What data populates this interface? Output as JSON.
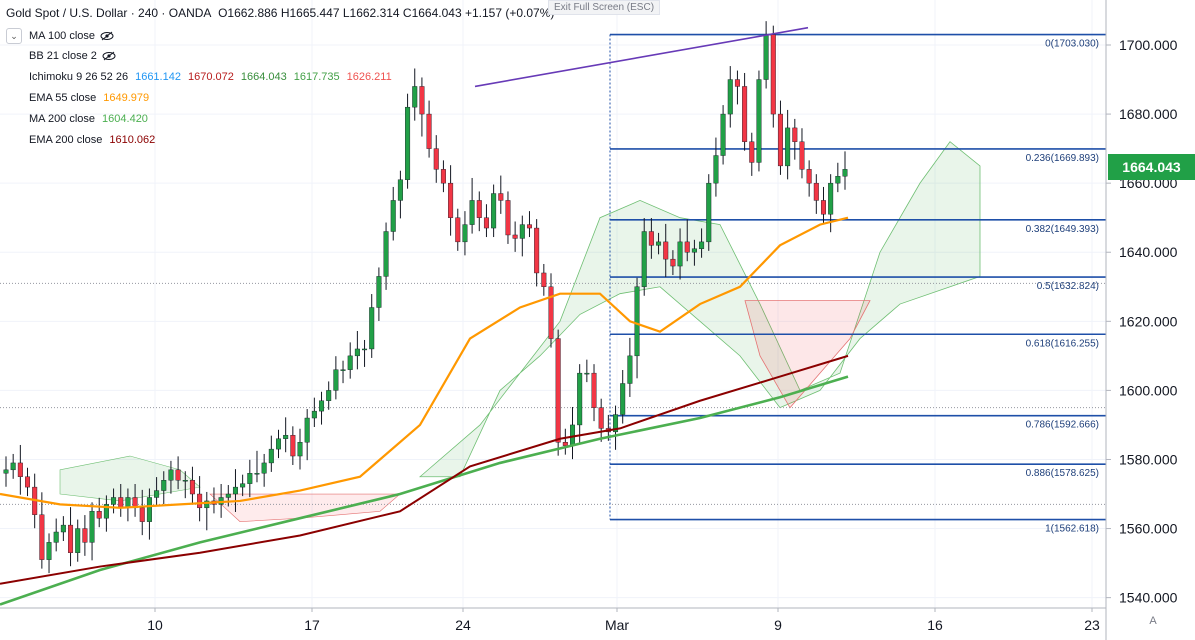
{
  "header": {
    "symbol": "Gold Spot / U.S. Dollar · 240 · OANDA",
    "ohlc": "O1662.886 H1665.447 L1662.314 C1664.043 +1.157 (+0.07%)"
  },
  "exit_fullscreen": "Exit Full Screen (ESC)",
  "indicators": [
    {
      "label": "MA 100 close",
      "values": []
    },
    {
      "label": "BB 21 close 2",
      "values": []
    },
    {
      "label": "Ichimoku 9 26 52 26",
      "values": [
        {
          "v": "1661.142",
          "color": "#2196f3"
        },
        {
          "v": "1670.072",
          "color": "#b71c1c"
        },
        {
          "v": "1664.043",
          "color": "#388e3c"
        },
        {
          "v": "1617.735",
          "color": "#43a047"
        },
        {
          "v": "1626.211",
          "color": "#ef5350"
        }
      ]
    },
    {
      "label": "EMA 55 close",
      "values": [
        {
          "v": "1649.979",
          "color": "#ff9800"
        }
      ]
    },
    {
      "label": "MA 200 close",
      "values": [
        {
          "v": "1604.420",
          "color": "#4caf50"
        }
      ]
    },
    {
      "label": "EMA 200 close",
      "values": [
        {
          "v": "1610.062",
          "color": "#8b0000"
        }
      ]
    }
  ],
  "current_price": "1664.043",
  "chart_data": {
    "type": "candlestick",
    "title": "Gold Spot / U.S. Dollar · 240 · OANDA",
    "y_axis": {
      "ticks": [
        1540,
        1560,
        1580,
        1600,
        1620,
        1640,
        1660,
        1680,
        1700
      ],
      "tick_labels": [
        "1540.000",
        "1560.000",
        "1580.000",
        "1600.000",
        "1620.000",
        "1640.000",
        "1660.000",
        "1680.000",
        "1700.000"
      ],
      "range": [
        1537,
        1711
      ]
    },
    "x_axis": {
      "tick_labels": [
        "10",
        "17",
        "24",
        "Mar",
        "9",
        "16",
        "23"
      ],
      "range_note": "4-hour bars, Feb–Mar"
    },
    "fibonacci": [
      {
        "ratio": "0",
        "price": 1703.03,
        "label": "0(1703.030)"
      },
      {
        "ratio": "0.236",
        "price": 1669.893,
        "label": "0.236(1669.893)"
      },
      {
        "ratio": "0.382",
        "price": 1649.393,
        "label": "0.382(1649.393)"
      },
      {
        "ratio": "0.5",
        "price": 1632.824,
        "label": "0.5(1632.824)"
      },
      {
        "ratio": "0.618",
        "price": 1616.255,
        "label": "0.618(1616.255)"
      },
      {
        "ratio": "0.786",
        "price": 1592.666,
        "label": "0.786(1592.666)"
      },
      {
        "ratio": "0.886",
        "price": 1578.625,
        "label": "0.886(1578.625)"
      },
      {
        "ratio": "1",
        "price": 1562.618,
        "label": "1(1562.618)"
      }
    ],
    "dotted_levels": [
      1631,
      1595,
      1567
    ],
    "trendline": {
      "from": 1688,
      "to": 1705,
      "color": "#673ab7"
    },
    "colors": {
      "up": "#21a047",
      "down": "#f23645",
      "ema55": "#ff9800",
      "ma200": "#4caf50",
      "ema200": "#8b0000",
      "fib": "#1e4fa8"
    },
    "series": [
      {
        "name": "close",
        "values": [
          1577,
          1579,
          1575,
          1572,
          1564,
          1551,
          1556,
          1559,
          1561,
          1553,
          1560,
          1556,
          1565,
          1563,
          1567,
          1569,
          1566,
          1569,
          1566,
          1562,
          1569,
          1571,
          1574,
          1577,
          1574,
          1574,
          1570,
          1566,
          1568,
          1567,
          1569,
          1570,
          1572,
          1573,
          1576,
          1576,
          1579,
          1583,
          1586,
          1587,
          1581,
          1585,
          1592,
          1594,
          1597,
          1600,
          1606,
          1606,
          1610,
          1612,
          1612,
          1624,
          1633,
          1646,
          1655,
          1661,
          1682,
          1688,
          1680,
          1670,
          1664,
          1660,
          1650,
          1643,
          1648,
          1655,
          1650,
          1647,
          1657,
          1655,
          1645,
          1644,
          1648,
          1647,
          1634,
          1630,
          1615,
          1585,
          1584,
          1590,
          1605,
          1605,
          1595,
          1589,
          1588,
          1593,
          1602,
          1610,
          1630,
          1646,
          1642,
          1643,
          1638,
          1636,
          1643,
          1640,
          1641,
          1643,
          1660,
          1668,
          1680,
          1690,
          1688,
          1672,
          1666,
          1690,
          1703,
          1680,
          1665,
          1676,
          1672,
          1664,
          1660,
          1655,
          1651,
          1660,
          1662,
          1664
        ]
      }
    ]
  }
}
